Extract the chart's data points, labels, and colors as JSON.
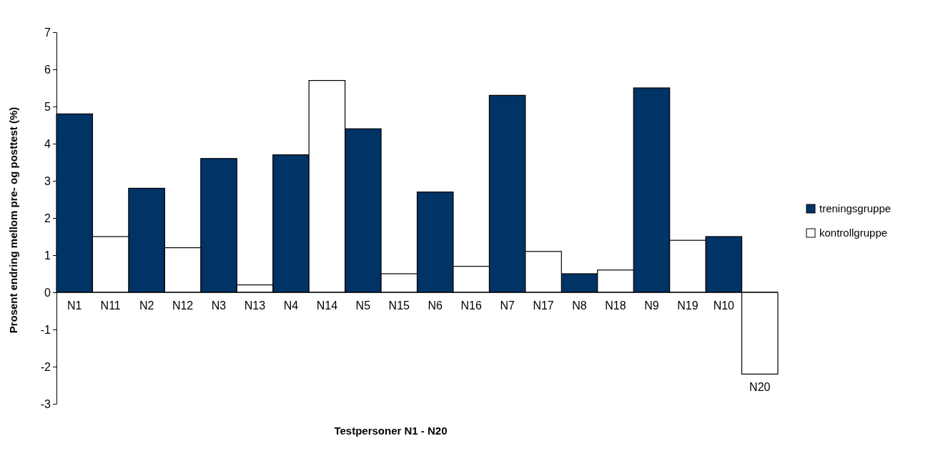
{
  "chart_data": {
    "type": "bar",
    "stacked": true,
    "xlabel": "Testpersoner N1 - N20",
    "ylabel": "Prosent endring mellom pre- og posttest (%)",
    "categories": [
      "N1",
      "N11",
      "N2",
      "N12",
      "N3",
      "N13",
      "N4",
      "N14",
      "N5",
      "N15",
      "N6",
      "N16",
      "N7",
      "N17",
      "N8",
      "N18",
      "N9",
      "N19",
      "N10",
      "N20"
    ],
    "series": [
      {
        "name": "treningsgruppe",
        "color": "#003366",
        "values": [
          4.8,
          null,
          2.8,
          null,
          3.6,
          null,
          3.7,
          null,
          4.4,
          null,
          2.7,
          null,
          5.3,
          null,
          0.5,
          null,
          5.5,
          null,
          1.5,
          null
        ]
      },
      {
        "name": "kontrollgruppe",
        "color": "#ffffff",
        "values": [
          null,
          1.5,
          null,
          1.2,
          null,
          0.2,
          null,
          5.7,
          null,
          0.5,
          null,
          0.7,
          null,
          1.1,
          null,
          0.6,
          null,
          1.4,
          null,
          -2.2
        ]
      }
    ],
    "ylim": [
      -3,
      7
    ],
    "yticks": [
      -3,
      -2,
      -1,
      0,
      1,
      2,
      3,
      4,
      5,
      6,
      7
    ],
    "legend": "right"
  }
}
